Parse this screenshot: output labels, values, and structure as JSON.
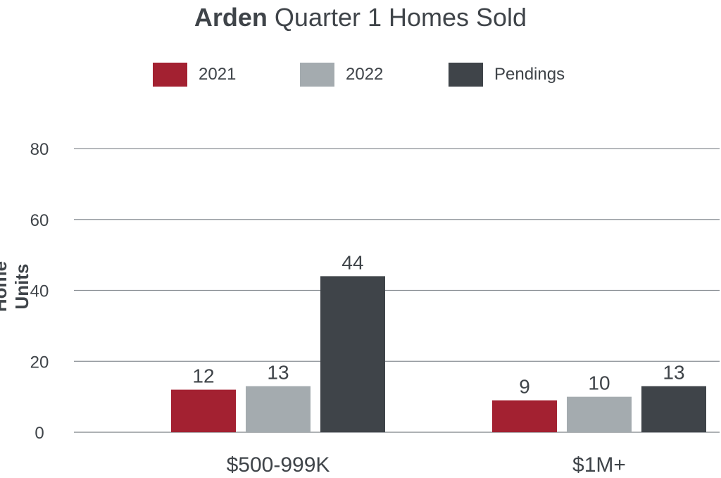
{
  "chart_data": {
    "type": "bar",
    "title_bold": "Arden",
    "title_rest": " Quarter 1 Homes Sold",
    "ylabel": "Home Units",
    "xlabel": "",
    "categories": [
      "$500-999K",
      "$1M+"
    ],
    "series": [
      {
        "name": "2021",
        "color": "#a32131",
        "values": [
          12,
          9
        ]
      },
      {
        "name": "2022",
        "color": "#a4abaf",
        "values": [
          13,
          10
        ]
      },
      {
        "name": "Pendings",
        "color": "#3f4449",
        "values": [
          44,
          13
        ]
      }
    ],
    "ylim": [
      0,
      80
    ],
    "yticks": [
      0,
      20,
      40,
      60,
      80
    ],
    "grid": true,
    "legend": "top-center"
  }
}
